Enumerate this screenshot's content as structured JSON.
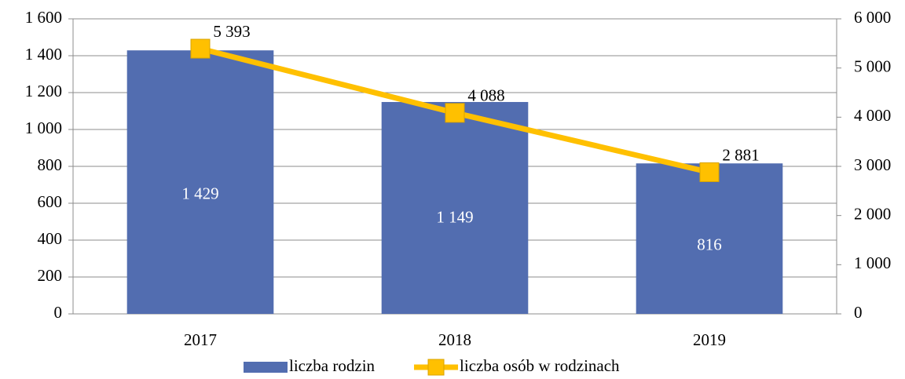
{
  "chart_data": {
    "type": "bar",
    "categories": [
      "2017",
      "2018",
      "2019"
    ],
    "series": [
      {
        "name": "liczba rodzin",
        "type": "bar",
        "color": "#526db0",
        "values": [
          1429,
          1149,
          816
        ],
        "value_labels": [
          "1 429",
          "1 149",
          "816"
        ]
      },
      {
        "name": "liczba osób w rodzinach",
        "type": "line",
        "axis": "y2",
        "color": "#ffc000",
        "values": [
          5393,
          4088,
          2881
        ],
        "value_labels": [
          "5 393",
          "4 088",
          "2 881"
        ]
      }
    ],
    "ylim": [
      0,
      1600
    ],
    "yticks": [
      0,
      200,
      400,
      600,
      800,
      {
        "value": 1000,
        "label": "1 000"
      },
      {
        "value": 1200,
        "label": "1 200"
      },
      {
        "value": 1400,
        "label": "1 400"
      },
      {
        "value": 1600,
        "label": "1 600"
      }
    ],
    "y2lim": [
      0,
      6000
    ],
    "y2ticks": [
      0,
      {
        "value": 1000,
        "label": "1 000"
      },
      {
        "value": 2000,
        "label": "2 000"
      },
      {
        "value": 3000,
        "label": "3 000"
      },
      {
        "value": 4000,
        "label": "4 000"
      },
      {
        "value": 5000,
        "label": "5 000"
      },
      {
        "value": 6000,
        "label": "6 000"
      }
    ],
    "grid": true,
    "legend": "bottom"
  }
}
